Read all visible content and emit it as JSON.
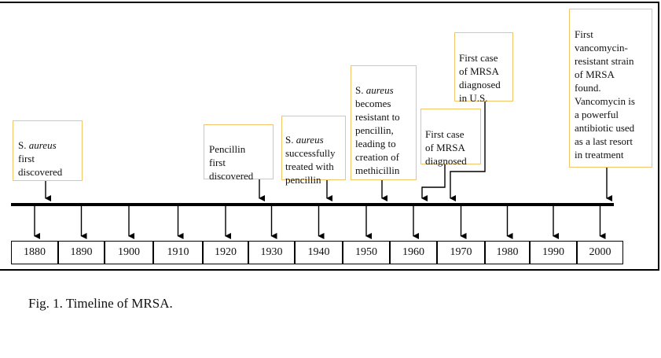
{
  "figure": {
    "caption": "Fig. 1. Timeline of MRSA."
  },
  "timeline": {
    "years": [
      "1880",
      "1890",
      "1900",
      "1910",
      "1920",
      "1930",
      "1940",
      "1950",
      "1960",
      "1970",
      "1980",
      "1990",
      "2000"
    ],
    "colors": {
      "box_border": "#f4c46a",
      "line": "#000000"
    },
    "events": [
      {
        "id": "e1",
        "pre": "S. ",
        "italic": "aureus",
        "post": "\nfirst\ndiscovered"
      },
      {
        "id": "e2",
        "pre": "",
        "italic": "",
        "post": "Pencillin\nfirst\ndiscovered"
      },
      {
        "id": "e3",
        "pre": "S. ",
        "italic": "aureus",
        "post": "\nsuccessfully\ntreated with\npencillin"
      },
      {
        "id": "e4",
        "pre": "S. ",
        "italic": "aureus",
        "post": "\nbecomes\nresistant to\npencillin,\nleading to\ncreation of\nmethicillin"
      },
      {
        "id": "e5",
        "pre": "",
        "italic": "",
        "post": "First case\nof MRSA\ndiagnosed"
      },
      {
        "id": "e6",
        "pre": "",
        "italic": "",
        "post": "First case\nof MRSA\ndiagnosed\nin U.S."
      },
      {
        "id": "e7",
        "pre": "",
        "italic": "",
        "post": "First\nvancomycin-\nresistant strain\nof MRSA\nfound.\nVancomycin is\na powerful\nantibiotic used\nas a last resort\nin treatment"
      }
    ]
  }
}
